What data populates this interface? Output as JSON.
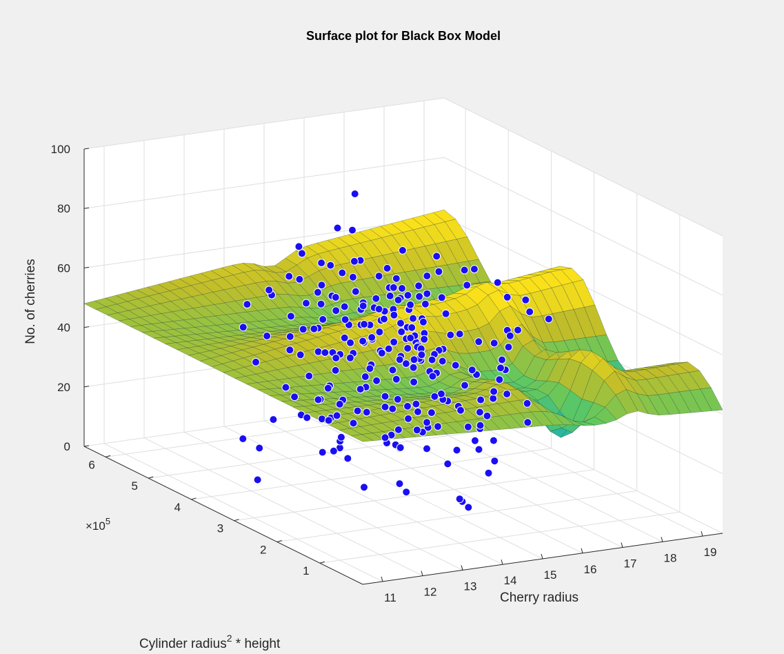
{
  "chart_data": {
    "type": "surface3d",
    "title": "Surface plot for Black Box Model",
    "xlabel": "Cherry radius",
    "ylabel_base": "Cylinder radius",
    "ylabel_sup": "2",
    "ylabel_tail": " * height",
    "zlabel": "No. of cherries",
    "exponent_label": "×10",
    "exponent_power": "5",
    "xlim": [
      10.5,
      19.5
    ],
    "ylim": [
      0,
      650000
    ],
    "zlim": [
      0,
      100
    ],
    "x_ticks": [
      11,
      12,
      13,
      14,
      15,
      16,
      17,
      18,
      19
    ],
    "y_ticks": [
      1,
      2,
      3,
      4,
      5,
      6
    ],
    "z_ticks": [
      0,
      20,
      40,
      60,
      80,
      100
    ],
    "grid": true,
    "colormap": "parula",
    "surface_color_stops": [
      "#3e26a8",
      "#2c88e6",
      "#13b2b7",
      "#5fc860",
      "#c0bd2a",
      "#f9e01a"
    ],
    "marker_color": "#1a0ff2",
    "marker_edge_color": "#ffffff",
    "series": [
      {
        "name": "data",
        "type": "scatter3d",
        "points": [
          [
            17.37,
            5.48,
            60.1
          ],
          [
            15.29,
            5.51,
            37.7
          ],
          [
            15.43,
            4.29,
            56.1
          ],
          [
            16.1,
            2.57,
            41.5
          ],
          [
            13.42,
            1.86,
            26.9
          ],
          [
            14.24,
            4.19,
            40.9
          ],
          [
            16.78,
            4.62,
            36.5
          ],
          [
            15.46,
            4.87,
            74.9
          ],
          [
            17.61,
            4.79,
            48.7
          ],
          [
            15.14,
            3.63,
            37.3
          ],
          [
            16.15,
            3.04,
            27.4
          ],
          [
            14.97,
            3.31,
            1.7
          ],
          [
            14.31,
            2.51,
            34.7
          ],
          [
            17.97,
            2.63,
            56.2
          ],
          [
            16.47,
            4.07,
            57.3
          ],
          [
            13.31,
            3.61,
            31.1
          ],
          [
            13.37,
            3.21,
            17.5
          ],
          [
            14.8,
            4.6,
            78.8
          ],
          [
            15.12,
            4.43,
            17.9
          ],
          [
            11.86,
            2.22,
            37.2
          ],
          [
            14.47,
            4.84,
            43.8
          ],
          [
            13.26,
            4.05,
            68.4
          ],
          [
            15.98,
            4.55,
            4.6
          ],
          [
            15.9,
            4.66,
            60.1
          ],
          [
            14.94,
            1.59,
            52.3
          ],
          [
            16.46,
            4.52,
            42.8
          ],
          [
            13.03,
            2.3,
            48.6
          ],
          [
            15.24,
            2.1,
            3.8
          ],
          [
            14.82,
            4.02,
            57.8
          ],
          [
            13.19,
            2.86,
            16.8
          ],
          [
            15.39,
            1.19,
            67.6
          ],
          [
            12.27,
            3.04,
            60.7
          ],
          [
            14.38,
            3.59,
            48.3
          ],
          [
            15.07,
            3.43,
            18.8
          ],
          [
            15.28,
            4.05,
            40.5
          ],
          [
            15.22,
            3.22,
            40.9
          ],
          [
            14.03,
            4.33,
            40.6
          ],
          [
            14.5,
            3.16,
            76.1
          ],
          [
            18.44,
            3.79,
            43.3
          ],
          [
            15.46,
            3.19,
            52.2
          ],
          [
            14.37,
            4.49,
            38.5
          ],
          [
            16.28,
            4.01,
            49.7
          ],
          [
            15.97,
            3.12,
            7.8
          ],
          [
            17.26,
            2.47,
            30.3
          ],
          [
            15.49,
            3.36,
            46.7
          ],
          [
            14.93,
            4.04,
            20.6
          ],
          [
            12.49,
            2.63,
            44.2
          ],
          [
            16.39,
            4.58,
            55.6
          ],
          [
            17.68,
            2.85,
            20.4
          ],
          [
            11.72,
            3.59,
            7.2
          ],
          [
            15.11,
            4.08,
            44.5
          ],
          [
            12.93,
            3.52,
            40.3
          ],
          [
            16.41,
            2.15,
            37.4
          ],
          [
            15.06,
            3.47,
            35.5
          ],
          [
            15.97,
            2.2,
            30.5
          ],
          [
            12.94,
            1.51,
            31.5
          ],
          [
            15.45,
            3.74,
            60.1
          ],
          [
            15.94,
            3.8,
            42.3
          ],
          [
            16.25,
            2.31,
            20.9
          ],
          [
            14.92,
            2.56,
            44.9
          ],
          [
            16.43,
            4.46,
            49.4
          ],
          [
            15.88,
            4.4,
            58.1
          ],
          [
            12.79,
            3.83,
            51.6
          ],
          [
            15.41,
            2.32,
            2.8
          ],
          [
            13.31,
            3.43,
            36.1
          ],
          [
            15.31,
            4.53,
            50.9
          ],
          [
            15.18,
            1.9,
            3.4
          ],
          [
            13.66,
            4.65,
            39.6
          ],
          [
            15.48,
            5.07,
            47.7
          ],
          [
            15.71,
            5.34,
            56.7
          ],
          [
            14.42,
            2.93,
            53.1
          ],
          [
            13.32,
            2.6,
            8.7
          ],
          [
            15.85,
            3.98,
            35.6
          ],
          [
            15.21,
            3.61,
            68.1
          ],
          [
            17.74,
            4.98,
            55.8
          ],
          [
            16.64,
            2.29,
            55.5
          ],
          [
            18.08,
            3.7,
            55.7
          ],
          [
            15.29,
            3.64,
            60.5
          ],
          [
            13.26,
            4.01,
            23.1
          ],
          [
            14.58,
            2.99,
            33.1
          ],
          [
            18.64,
            3.7,
            49.7
          ],
          [
            15.73,
            2.26,
            22.2
          ],
          [
            15.67,
            3.52,
            65.4
          ],
          [
            16.47,
            4.85,
            53.8
          ],
          [
            15.26,
            4.97,
            32.8
          ],
          [
            16.21,
            5.16,
            39.5
          ],
          [
            14.85,
            3.39,
            17.7
          ],
          [
            14.84,
            4.09,
            49.8
          ],
          [
            13.31,
            5.41,
            42.5
          ],
          [
            18.7,
            3.85,
            52.5
          ],
          [
            14.9,
            4.73,
            49.9
          ],
          [
            15.74,
            4.69,
            30.4
          ],
          [
            15.94,
            3.79,
            20.6
          ],
          [
            14.01,
            5.51,
            37.5
          ],
          [
            14.49,
            3.95,
            67.5
          ],
          [
            15.88,
            2.56,
            24.4
          ],
          [
            16.85,
            4.78,
            40.1
          ],
          [
            13.67,
            3.7,
            23.5
          ],
          [
            12.3,
            4.09,
            13.2
          ],
          [
            17.55,
            3.84,
            11.5
          ],
          [
            15.96,
            3.88,
            45.5
          ],
          [
            15.56,
            2.74,
            32.4
          ],
          [
            15.62,
            3.42,
            41.1
          ],
          [
            14.9,
            4.27,
            59.6
          ],
          [
            12.94,
            3.73,
            45.9
          ],
          [
            14.98,
            3.1,
            61.7
          ],
          [
            14.57,
            3.35,
            46.1
          ],
          [
            13.76,
            3.26,
            24.7
          ],
          [
            13.45,
            3.79,
            29.4
          ],
          [
            16.48,
            2.39,
            40.4
          ],
          [
            14.48,
            3.68,
            53.6
          ],
          [
            11.62,
            3.84,
            19.4
          ],
          [
            14.79,
            2.28,
            46.6
          ],
          [
            14.24,
            2.61,
            20.2
          ],
          [
            15.14,
            3.44,
            43.3
          ],
          [
            14.09,
            4.28,
            51.7
          ],
          [
            13.19,
            3.04,
            21.3
          ],
          [
            14.21,
            3.46,
            50.0
          ],
          [
            14.14,
            1.9,
            25.1
          ],
          [
            15.56,
            4.33,
            44.3
          ],
          [
            17.64,
            3.91,
            20.5
          ],
          [
            14.79,
            5.42,
            64.4
          ],
          [
            14.93,
            4.06,
            28.9
          ],
          [
            16.58,
            4.26,
            46.2
          ],
          [
            16.62,
            3.85,
            35.9
          ],
          [
            16.58,
            3.92,
            13.5
          ],
          [
            12.94,
            1.26,
            17.4
          ],
          [
            15.05,
            2.37,
            53.5
          ],
          [
            14.46,
            4.32,
            37.7
          ],
          [
            14.64,
            3.54,
            35.3
          ],
          [
            13.53,
            3.15,
            59.0
          ],
          [
            15.87,
            2.3,
            18.7
          ],
          [
            13.48,
            3.19,
            60.6
          ],
          [
            14.04,
            1.78,
            33.3
          ],
          [
            14.09,
            4.65,
            16.0
          ],
          [
            14.8,
            3.8,
            47.7
          ],
          [
            15.45,
            5.37,
            59.5
          ],
          [
            14.57,
            3.63,
            38.9
          ],
          [
            16.62,
            3.77,
            52.4
          ],
          [
            14.2,
            4.5,
            59.0
          ],
          [
            17.91,
            4.31,
            61.1
          ],
          [
            14.5,
            4.45,
            57.6
          ],
          [
            17.02,
            3.82,
            44.5
          ],
          [
            16.12,
            3.81,
            44.5
          ],
          [
            16.07,
            5.38,
            82.3
          ],
          [
            18.37,
            4.3,
            16.8
          ],
          [
            16.51,
            3.56,
            47.0
          ],
          [
            13.41,
            4.84,
            57.2
          ],
          [
            14.97,
            2.3,
            37.2
          ],
          [
            16.56,
            4.41,
            17.6
          ],
          [
            14.81,
            4.01,
            56.8
          ],
          [
            16.77,
            4.22,
            27.9
          ],
          [
            17.19,
            3.5,
            15.7
          ],
          [
            13.99,
            3.72,
            28.8
          ],
          [
            13.74,
            5.21,
            55.6
          ],
          [
            16.1,
            2.29,
            10.4
          ],
          [
            16.02,
            2.77,
            36.6
          ],
          [
            13.62,
            4.23,
            58.4
          ],
          [
            15.95,
            2.89,
            14.1
          ],
          [
            16.11,
            3.87,
            40.9
          ],
          [
            13.98,
            1.64,
            39.4
          ],
          [
            15.01,
            3.57,
            62.9
          ],
          [
            16.66,
            2.69,
            33.9
          ],
          [
            16.59,
            2.28,
            51.9
          ],
          [
            16.92,
            4.49,
            59.4
          ],
          [
            15.6,
            5.39,
            48.3
          ],
          [
            16.44,
            2.81,
            26.5
          ],
          [
            18.29,
            4.12,
            57.2
          ],
          [
            15.01,
            3.16,
            48.2
          ],
          [
            14.83,
            2.26,
            54.3
          ],
          [
            13.15,
            3.43,
            71.1
          ],
          [
            15.36,
            4.59,
            66.9
          ],
          [
            15.72,
            3.55,
            61.5
          ],
          [
            16.28,
            4.34,
            55.2
          ],
          [
            12.65,
            4.5,
            38.5
          ],
          [
            17.13,
            3.48,
            44.1
          ],
          [
            12.87,
            3.15,
            17.4
          ],
          [
            15.23,
            3.09,
            44.8
          ],
          [
            16.8,
            2.55,
            41.9
          ],
          [
            13.65,
            3.44,
            18.9
          ],
          [
            14.48,
            2.65,
            29.2
          ],
          [
            16.68,
            4.37,
            8.2
          ],
          [
            14.18,
            1.15,
            43.3
          ],
          [
            14.46,
            2.68,
            55.9
          ],
          [
            13.62,
            4.63,
            64.6
          ],
          [
            14.92,
            3.22,
            53.5
          ],
          [
            14.28,
            2.83,
            31.6
          ],
          [
            14.58,
            4.6,
            14.5
          ],
          [
            15.01,
            4.81,
            13.8
          ],
          [
            15.71,
            3.03,
            32.5
          ],
          [
            15.85,
            3.88,
            56.1
          ],
          [
            16.01,
            4.63,
            48.3
          ],
          [
            16.53,
            4.13,
            13.5
          ],
          [
            17.17,
            4.5,
            65.5
          ],
          [
            13.42,
            4.52,
            28.4
          ],
          [
            15.37,
            3.83,
            55.9
          ],
          [
            15.79,
            2.77,
            43.8
          ],
          [
            14.26,
            3.08,
            59.6
          ],
          [
            17.47,
            4.13,
            62.9
          ],
          [
            15.39,
            2.89,
            47.4
          ],
          [
            15.77,
            3.24,
            30.0
          ],
          [
            13.76,
            1.85,
            48.6
          ],
          [
            15.16,
            3.15,
            44.2
          ],
          [
            15.78,
            3.66,
            15.7
          ],
          [
            14.1,
            4.85,
            72.1
          ],
          [
            13.22,
            4.13,
            28.4
          ],
          [
            14.35,
            3.07,
            20.1
          ],
          [
            15.69,
            3.73,
            46.3
          ],
          [
            15.68,
            3.66,
            53.4
          ],
          [
            14.45,
            3.88,
            73.4
          ],
          [
            14.75,
            4.93,
            64.8
          ],
          [
            14.73,
            3.68,
            58.7
          ],
          [
            13.6,
            2.37,
            40.4
          ],
          [
            15.08,
            3.41,
            42.5
          ],
          [
            17.11,
            2.95,
            39.1
          ],
          [
            15.78,
            1.85,
            18.2
          ],
          [
            13.06,
            3.36,
            65.4
          ],
          [
            13.28,
            5.29,
            51.1
          ],
          [
            13.31,
            2.1,
            39.3
          ],
          [
            15.35,
            4.58,
            23.7
          ],
          [
            13.57,
            4.54,
            51.9
          ],
          [
            14.88,
            3.48,
            46.0
          ],
          [
            16.05,
            3.56,
            39.5
          ],
          [
            14.7,
            3.54,
            59.3
          ],
          [
            14.02,
            3.82,
            26.6
          ],
          [
            15.74,
            1.64,
            53.8
          ],
          [
            15.51,
            3.79,
            51.2
          ],
          [
            13.12,
            4.53,
            18.1
          ],
          [
            14.73,
            4.37,
            43.6
          ],
          [
            15.41,
            4.87,
            37.1
          ],
          [
            14.88,
            4.31,
            38.6
          ],
          [
            13.31,
            3.3,
            15.9
          ],
          [
            14.75,
            4.6,
            31.0
          ],
          [
            17.8,
            4.38,
            55.4
          ],
          [
            14.63,
            2.48,
            51.6
          ],
          [
            15.27,
            3.72,
            54.9
          ],
          [
            13.95,
            3.51,
            44.5
          ],
          [
            18.46,
            4.36,
            34.8
          ],
          [
            16.95,
            5.52,
            37.5
          ],
          [
            16.3,
            3.95,
            55.0
          ]
        ]
      }
    ]
  }
}
